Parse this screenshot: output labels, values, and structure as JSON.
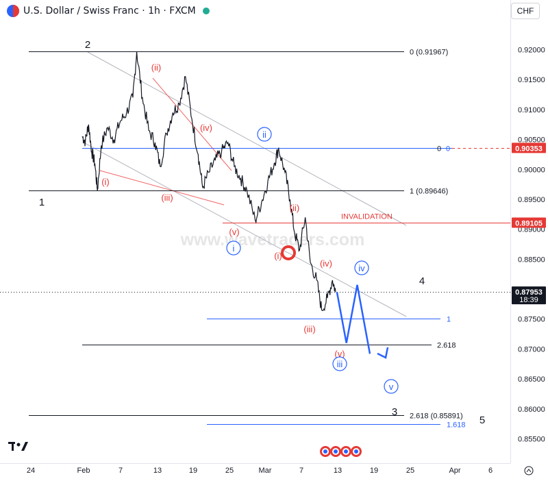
{
  "header": {
    "title": "U.S. Dollar / Swiss Franc · 1h · FXCM",
    "currency": "CHF"
  },
  "watermark": "www.wavetraders.com",
  "chart_data": {
    "type": "line",
    "title": "U.S. Dollar / Swiss Franc · 1h · FXCM",
    "x_ticks": [
      "24",
      "Feb",
      "7",
      "13",
      "19",
      "25",
      "Mar",
      "7",
      "13",
      "19",
      "25",
      "Apr",
      "6"
    ],
    "y_ticks": [
      "0.92000",
      "0.91500",
      "0.91000",
      "0.90500",
      "0.90000",
      "0.89500",
      "0.89000",
      "0.88500",
      "0.88000",
      "0.87500",
      "0.87000",
      "0.86500",
      "0.86000",
      "0.85500"
    ],
    "y_tick_values": [
      0.92,
      0.915,
      0.91,
      0.905,
      0.9,
      0.895,
      0.89,
      0.885,
      0.88,
      0.875,
      0.87,
      0.865,
      0.86,
      0.855
    ],
    "ylim": [
      0.85,
      0.9245
    ],
    "price_series": [
      {
        "t": 0,
        "v": 0.9055
      },
      {
        "t": 0.5,
        "v": 0.9047
      },
      {
        "t": 1,
        "v": 0.9075
      },
      {
        "t": 1.5,
        "v": 0.903
      },
      {
        "t": 2,
        "v": 0.901
      },
      {
        "t": 2.4,
        "v": 0.8965
      },
      {
        "t": 3,
        "v": 0.904
      },
      {
        "t": 4,
        "v": 0.907
      },
      {
        "t": 5,
        "v": 0.905
      },
      {
        "t": 6,
        "v": 0.908
      },
      {
        "t": 7,
        "v": 0.9095
      },
      {
        "t": 8,
        "v": 0.912
      },
      {
        "t": 8.6,
        "v": 0.9197
      },
      {
        "t": 9.5,
        "v": 0.912
      },
      {
        "t": 10.5,
        "v": 0.9065
      },
      {
        "t": 11.5,
        "v": 0.9045
      },
      {
        "t": 12.3,
        "v": 0.9005
      },
      {
        "t": 13.3,
        "v": 0.906
      },
      {
        "t": 14.3,
        "v": 0.9095
      },
      {
        "t": 15.3,
        "v": 0.911
      },
      {
        "t": 16.3,
        "v": 0.9155
      },
      {
        "t": 17.3,
        "v": 0.9085
      },
      {
        "t": 18.3,
        "v": 0.9025
      },
      {
        "t": 19,
        "v": 0.897
      },
      {
        "t": 20,
        "v": 0.8995
      },
      {
        "t": 21,
        "v": 0.9015
      },
      {
        "t": 22,
        "v": 0.903
      },
      {
        "t": 23,
        "v": 0.9045
      },
      {
        "t": 24,
        "v": 0.9005
      },
      {
        "t": 25,
        "v": 0.8985
      },
      {
        "t": 26,
        "v": 0.8965
      },
      {
        "t": 27.3,
        "v": 0.8915
      },
      {
        "t": 28.3,
        "v": 0.8945
      },
      {
        "t": 29.3,
        "v": 0.898
      },
      {
        "t": 30.3,
        "v": 0.901
      },
      {
        "t": 31,
        "v": 0.9035
      },
      {
        "t": 32,
        "v": 0.8995
      },
      {
        "t": 32.8,
        "v": 0.895
      },
      {
        "t": 33.5,
        "v": 0.8895
      },
      {
        "t": 34.3,
        "v": 0.8865
      },
      {
        "t": 35.2,
        "v": 0.892
      },
      {
        "t": 36,
        "v": 0.8845
      },
      {
        "t": 37,
        "v": 0.8815
      },
      {
        "t": 37.8,
        "v": 0.8765
      },
      {
        "t": 38.7,
        "v": 0.8785
      },
      {
        "t": 39.5,
        "v": 0.8815
      },
      {
        "t": 40,
        "v": 0.8795
      }
    ],
    "projection": [
      {
        "t": 40.2,
        "v": 0.8795
      },
      {
        "t": 41.7,
        "v": 0.871
      },
      {
        "t": 43.4,
        "v": 0.8807
      },
      {
        "t": 45.4,
        "v": 0.8692
      }
    ],
    "levels": [
      {
        "label": "0 (0.91967)",
        "value": 0.91967,
        "color": "#131722"
      },
      {
        "label": "0",
        "label2": "0",
        "value": 0.90353,
        "color": "#131722"
      },
      {
        "label": "1 (0.89646)",
        "value": 0.89646,
        "color": "#131722"
      },
      {
        "label": "INVALIDATION",
        "value": 0.89105,
        "color": "#e53935"
      },
      {
        "label": "1",
        "value": 0.8751,
        "color": "#2962ff"
      },
      {
        "label": "2.618",
        "value": 0.8707,
        "color": "#131722"
      },
      {
        "label": "2.618 (0.85891)",
        "value": 0.85891,
        "color": "#131722"
      },
      {
        "label": "1.618",
        "value": 0.8575,
        "color": "#2962ff"
      }
    ],
    "price_labels": [
      {
        "text": "0.90353",
        "color": "#e53935"
      },
      {
        "text": "0.89105",
        "color": "#e53935"
      },
      {
        "text": "0.87953",
        "sub": "18:39",
        "color": "#131722"
      }
    ],
    "current_price": 0.87953,
    "wave_labels": {
      "black": [
        "1",
        "2",
        "3",
        "4",
        "5"
      ],
      "red": [
        "(ii)",
        "(iv)",
        "(i)",
        "(iii)",
        "(v)",
        "(ii)",
        "(i)",
        "(iv)",
        "(iii)",
        "(v)"
      ],
      "blue_circled": [
        "ii",
        "i",
        "iv",
        "iii",
        "v"
      ]
    }
  }
}
